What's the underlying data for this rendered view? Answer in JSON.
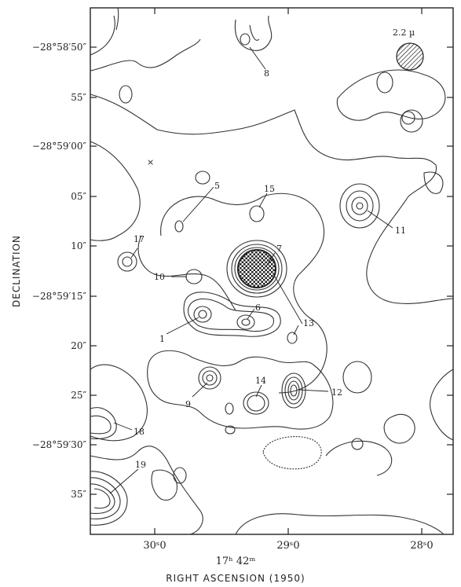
{
  "figure": {
    "beam_label": "2.2 µ",
    "dec_axis_title": "DECLINATION",
    "ra_axis_title": "RIGHT ASCENSION (1950)",
    "ra_hour_label": "17ʰ 42ᵐ",
    "dec_ticks": [
      "−28°58′50″",
      "55″",
      "−28°59′00″",
      "05″",
      "10″",
      "−28°59′15″",
      "20″",
      "25″",
      "−28°59′30″",
      "35″"
    ],
    "ra_ticks": [
      "30ˢ0",
      "29ˢ0",
      "28ˢ0"
    ],
    "sources": [
      "1",
      "5",
      "6",
      "7",
      "8",
      "9",
      "10",
      "11",
      "12",
      "13",
      "14",
      "15",
      "17",
      "18",
      "19"
    ],
    "marker": "×"
  }
}
